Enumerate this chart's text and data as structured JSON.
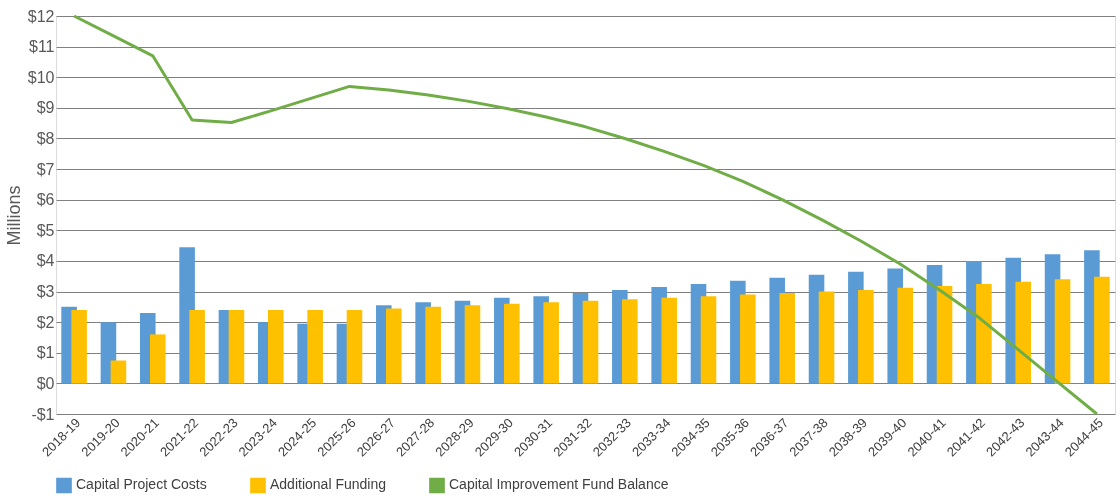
{
  "chart_data": {
    "type": "bar",
    "ylabel": "Millions",
    "categories": [
      "2018-19",
      "2019-20",
      "2020-21",
      "2021-22",
      "2022-23",
      "2023-24",
      "2024-25",
      "2025-26",
      "2026-27",
      "2027-28",
      "2028-29",
      "2029-30",
      "2030-31",
      "2031-32",
      "2032-33",
      "2033-34",
      "2034-35",
      "2035-36",
      "2036-37",
      "2037-38",
      "2038-39",
      "2039-40",
      "2040-41",
      "2041-42",
      "2042-43",
      "2043-44",
      "2044-45"
    ],
    "series": [
      {
        "name": "Capital Project Costs",
        "color": "#5b9bd5",
        "values": [
          2.5,
          2.0,
          2.3,
          4.45,
          2.4,
          2.0,
          1.95,
          1.95,
          2.55,
          2.65,
          2.7,
          2.8,
          2.85,
          2.95,
          3.05,
          3.15,
          3.25,
          3.35,
          3.45,
          3.55,
          3.65,
          3.75,
          3.87,
          4.0,
          4.1,
          4.22,
          4.35
        ]
      },
      {
        "name": "Additional Funding",
        "color": "#ffc000",
        "values": [
          2.4,
          0.75,
          1.6,
          2.4,
          2.4,
          2.4,
          2.4,
          2.4,
          2.45,
          2.5,
          2.55,
          2.6,
          2.65,
          2.7,
          2.75,
          2.8,
          2.85,
          2.9,
          2.95,
          3.0,
          3.05,
          3.12,
          3.18,
          3.25,
          3.32,
          3.4,
          3.48
        ]
      },
      {
        "name": "Capital Improvement Fund Balance",
        "type": "line",
        "color": "#70ad47",
        "values": [
          12.0,
          11.35,
          10.7,
          8.6,
          8.52,
          8.9,
          9.3,
          9.7,
          9.58,
          9.42,
          9.22,
          8.98,
          8.7,
          8.38,
          8.0,
          7.58,
          7.12,
          6.6,
          6.0,
          5.35,
          4.65,
          3.9,
          3.05,
          2.15,
          1.1,
          0.05,
          -1.0
        ]
      }
    ],
    "ylim": [
      -1,
      12
    ],
    "yticks": [
      {
        "value": -1,
        "label": "-$1"
      },
      {
        "value": 0,
        "label": "$0"
      },
      {
        "value": 1,
        "label": "$1"
      },
      {
        "value": 2,
        "label": "$2"
      },
      {
        "value": 3,
        "label": "$3"
      },
      {
        "value": 4,
        "label": "$4"
      },
      {
        "value": 5,
        "label": "$5"
      },
      {
        "value": 6,
        "label": "$6"
      },
      {
        "value": 7,
        "label": "$7"
      },
      {
        "value": 8,
        "label": "$8"
      },
      {
        "value": 9,
        "label": "$9"
      },
      {
        "value": 10,
        "label": "$10"
      },
      {
        "value": 11,
        "label": "$11"
      },
      {
        "value": 12,
        "label": "$12"
      }
    ],
    "grid": "y",
    "legend": "bottom",
    "marker": "none",
    "line_style": "solid"
  }
}
